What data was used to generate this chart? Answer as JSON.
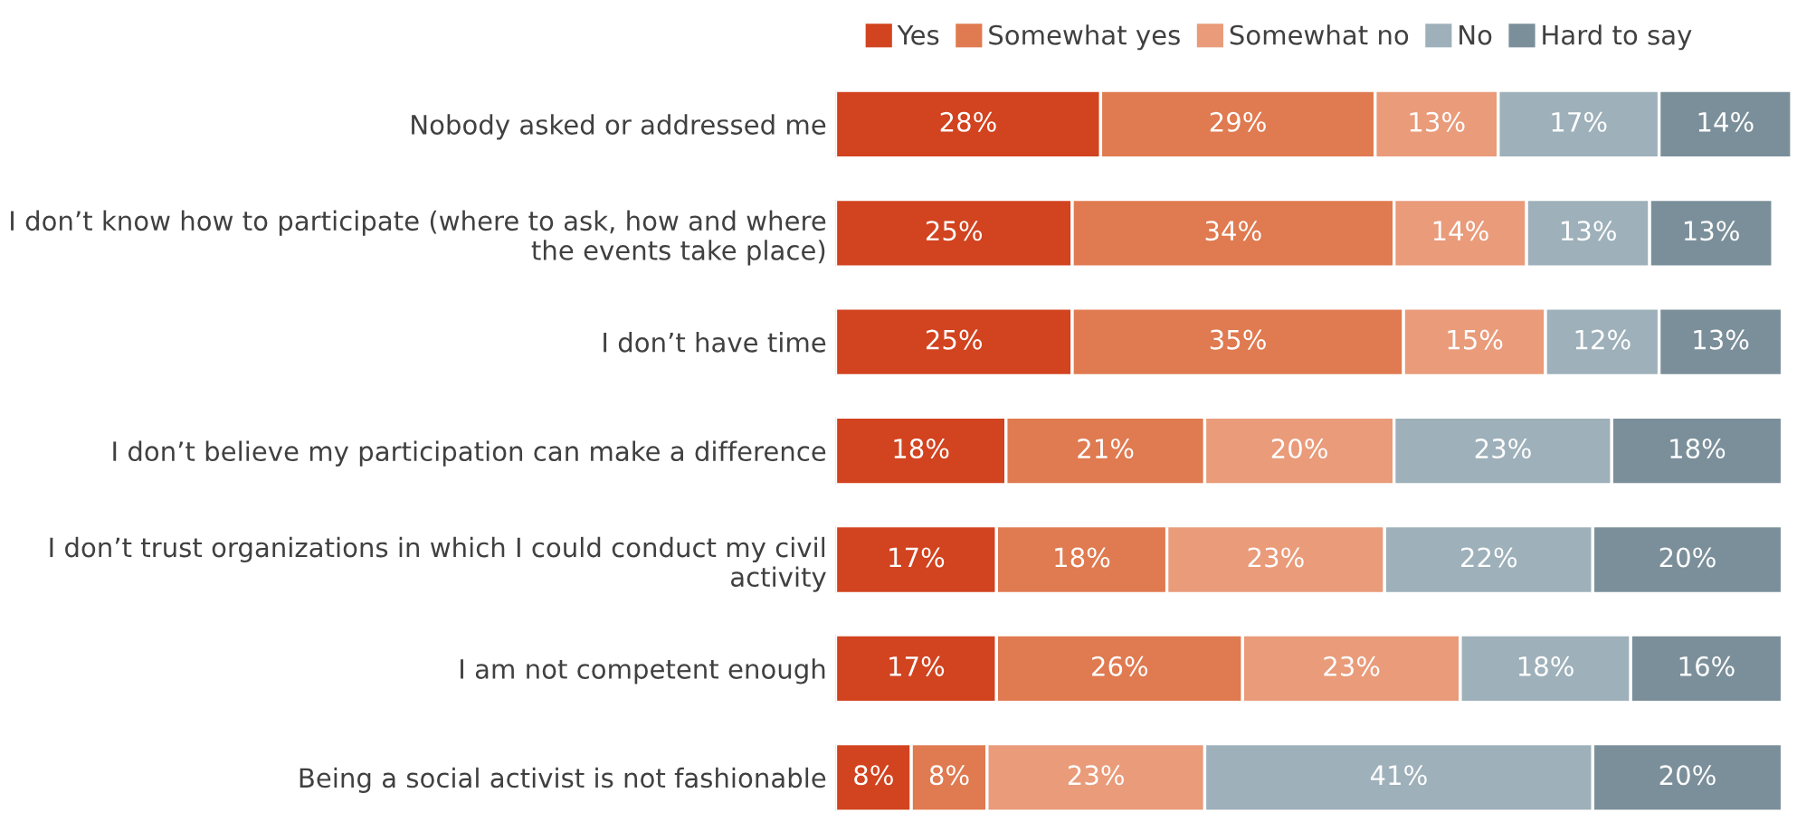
{
  "chart_data": {
    "type": "bar",
    "orientation": "horizontal",
    "stacked": true,
    "legend": "top right",
    "grid": false,
    "tick_labels": "y",
    "categories": [
      "Nobody asked or addressed me",
      "I don’t know how to participate (where to ask, how and where\nthe events take place)",
      "I don’t have time",
      "I don’t believe my participation can make a difference",
      "I don’t trust organizations in which I could conduct my civil\nactivity",
      "I am not competent enough",
      "Being a social activist is not fashionable"
    ],
    "series": [
      {
        "name": "Yes",
        "color": "#d2431f",
        "values": [
          28,
          25,
          25,
          18,
          17,
          17,
          8
        ],
        "value_labels": [
          "28%",
          "25%",
          "25%",
          "18%",
          "17%",
          "17%",
          "8%"
        ]
      },
      {
        "name": "Somewhat yes",
        "color": "#e07a50",
        "values": [
          29,
          34,
          35,
          21,
          18,
          26,
          8
        ],
        "value_labels": [
          "29%",
          "34%",
          "35%",
          "21%",
          "18%",
          "26%",
          "8%"
        ]
      },
      {
        "name": "Somewhat no",
        "color": "#e99b7a",
        "values": [
          13,
          14,
          15,
          20,
          23,
          23,
          23
        ],
        "value_labels": [
          "13%",
          "14%",
          "15%",
          "20%",
          "23%",
          "23%",
          "23%"
        ]
      },
      {
        "name": "No",
        "color": "#9eb0ba",
        "values": [
          17,
          13,
          12,
          23,
          22,
          18,
          41
        ],
        "value_labels": [
          "17%",
          "13%",
          "12%",
          "23%",
          "22%",
          "18%",
          "41%"
        ]
      },
      {
        "name": "Hard to say",
        "color": "#7b8f9a",
        "values": [
          14,
          13,
          13,
          18,
          20,
          16,
          20
        ],
        "value_labels": [
          "14%",
          "13%",
          "13%",
          "18%",
          "20%",
          "16%",
          "20%"
        ]
      }
    ]
  }
}
